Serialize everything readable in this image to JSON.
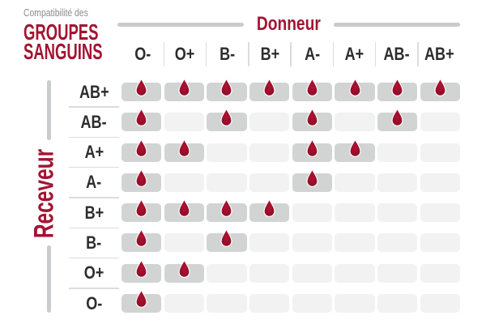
{
  "title": {
    "eyebrow": "Compatibilité des",
    "line1": "GROUPES",
    "line2": "SANGUINS"
  },
  "donor_axis": {
    "label": "Donneur"
  },
  "receiver_axis": {
    "label": "Receveur"
  },
  "chart_data": {
    "type": "heatmap",
    "title": "Compatibilité des GROUPES SANGUINS",
    "x_axis_label": "Donneur",
    "y_axis_label": "Receveur",
    "columns": [
      "O-",
      "O+",
      "B-",
      "B+",
      "A-",
      "A+",
      "AB-",
      "AB+"
    ],
    "rows": [
      "AB+",
      "AB-",
      "A+",
      "A-",
      "B+",
      "B-",
      "O+",
      "O-"
    ],
    "values": [
      [
        1,
        1,
        1,
        1,
        1,
        1,
        1,
        1
      ],
      [
        1,
        0,
        1,
        0,
        1,
        0,
        1,
        0
      ],
      [
        1,
        1,
        0,
        0,
        1,
        1,
        0,
        0
      ],
      [
        1,
        0,
        0,
        0,
        1,
        0,
        0,
        0
      ],
      [
        1,
        1,
        1,
        1,
        0,
        0,
        0,
        0
      ],
      [
        1,
        0,
        1,
        0,
        0,
        0,
        0,
        0
      ],
      [
        1,
        1,
        0,
        0,
        0,
        0,
        0,
        0
      ],
      [
        1,
        0,
        0,
        0,
        0,
        0,
        0,
        0
      ]
    ],
    "value_meaning": {
      "1": "compatible — blood drop shown",
      "0": "not compatible — empty cell"
    },
    "legend_position": "none",
    "grid": "off"
  },
  "icons": {
    "compatible_marker": "blood-drop-icon"
  },
  "colors": {
    "brand_red": "#A31432",
    "drop_red_light": "#AF1232",
    "drop_red_dark": "#8B0C26",
    "cell_filled": "#D2D4D3",
    "cell_empty": "#F2F2F2",
    "rule_gray": "#C9CBCC",
    "separator_gray": "#DCDCDC",
    "label_dark": "#2D2D2D",
    "eyebrow_gray": "#8C8C8C"
  }
}
